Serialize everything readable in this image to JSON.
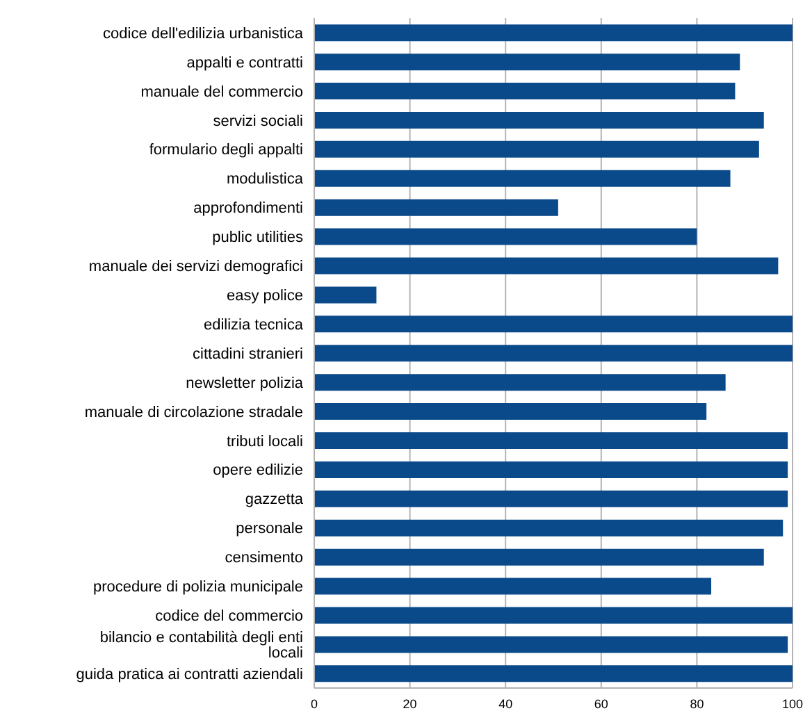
{
  "chart_data": {
    "type": "bar",
    "orientation": "horizontal",
    "categories": [
      "codice dell'edilizia urbanistica",
      "appalti e contratti",
      "manuale del commercio",
      "servizi sociali",
      "formulario degli appalti",
      "modulistica",
      "approfondimenti",
      "public utilities",
      "manuale dei servizi demografici",
      "easy police",
      "edilizia tecnica",
      "cittadini stranieri",
      "newsletter polizia",
      "manuale di circolazione stradale",
      "tributi locali",
      "opere edilizie",
      "gazzetta",
      "personale",
      "censimento",
      "procedure di polizia municipale",
      "codice del commercio",
      "bilancio e contabilità degli enti locali",
      "guida pratica ai contratti aziendali"
    ],
    "values": [
      100,
      89,
      88,
      94,
      93,
      87,
      51,
      80,
      97,
      13,
      100,
      100,
      86,
      82,
      99,
      99,
      99,
      98,
      94,
      83,
      100,
      99,
      100
    ],
    "color": "#0b4a8a",
    "xlim": [
      0,
      100
    ],
    "xticks": [
      0,
      20,
      40,
      60,
      80,
      100
    ],
    "grid": "x"
  }
}
